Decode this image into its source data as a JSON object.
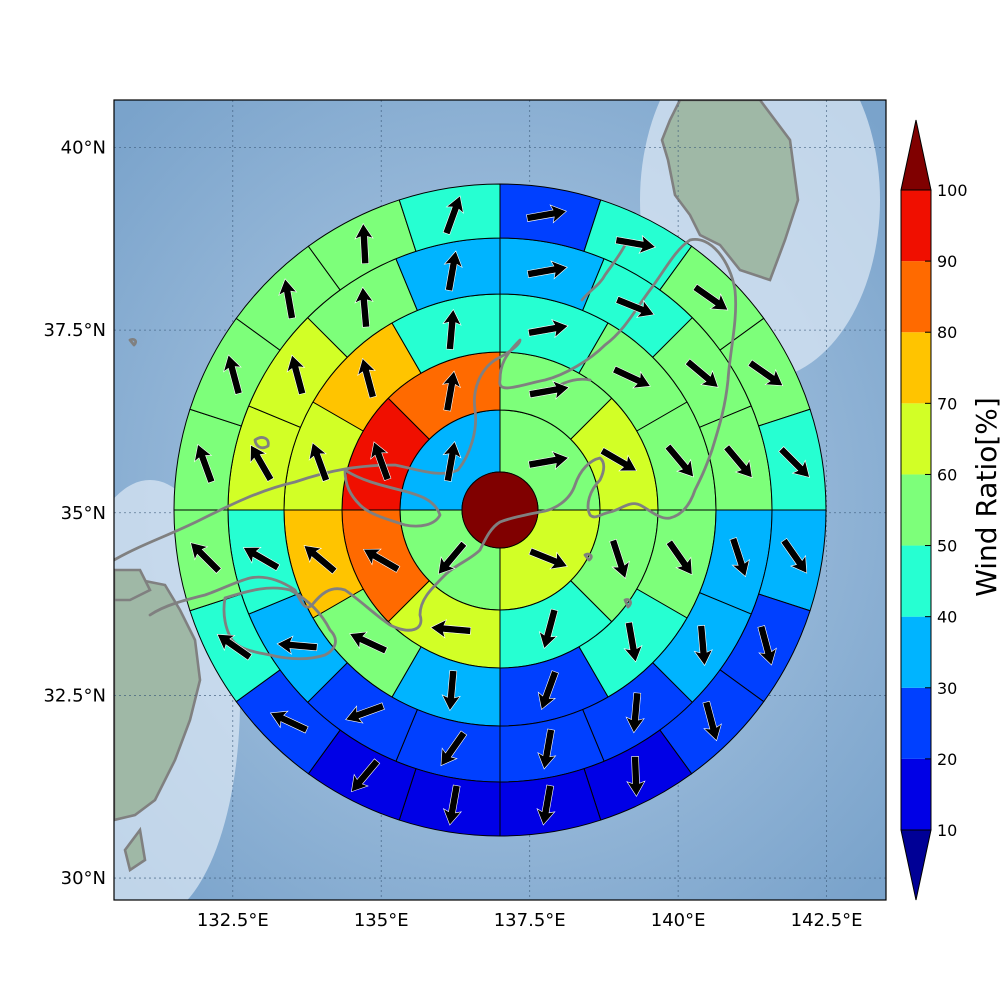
{
  "chart_data": {
    "type": "polar-sector-map",
    "title": "",
    "xlabel": "",
    "ylabel": "",
    "x_ticks": [
      "132.5°E",
      "135°E",
      "137.5°E",
      "140°E",
      "142.5°E"
    ],
    "x_tick_values": [
      132.5,
      135,
      137.5,
      140,
      142.5
    ],
    "y_ticks": [
      "30°N",
      "32.5°N",
      "35°N",
      "37.5°N",
      "40°N"
    ],
    "y_tick_values": [
      30,
      32.5,
      35,
      37.5,
      40
    ],
    "xlim": [
      130.5,
      143.5
    ],
    "ylim": [
      29.7,
      40.65
    ],
    "grid": true,
    "center_value": 100,
    "rings": [
      {
        "sectors": 4,
        "values": [
          55,
          62,
          55,
          35
        ],
        "arrow_dir": [
          80,
          112,
          220,
          10
        ]
      },
      {
        "sectors": 8,
        "values": [
          58,
          62,
          55,
          42,
          68,
          85,
          98,
          85
        ],
        "arrow_dir": [
          80,
          120,
          162,
          195,
          275,
          300,
          340,
          10
        ]
      },
      {
        "sectors": 12,
        "values": [
          42,
          58,
          52,
          55,
          42,
          28,
          38,
          55,
          72,
          62,
          72,
          42
        ],
        "arrow_dir": [
          80,
          115,
          140,
          145,
          170,
          200,
          185,
          295,
          310,
          340,
          345,
          5
        ]
      },
      {
        "sectors": 16,
        "values": [
          35,
          42,
          55,
          52,
          38,
          32,
          25,
          22,
          22,
          28,
          35,
          48,
          62,
          62,
          55,
          32
        ],
        "arrow_dir": [
          80,
          112,
          130,
          140,
          162,
          175,
          185,
          190,
          215,
          250,
          275,
          300,
          330,
          345,
          355,
          10
        ]
      },
      {
        "sectors": 20,
        "values": [
          22,
          45,
          55,
          55,
          42,
          30,
          22,
          25,
          12,
          12,
          15,
          18,
          28,
          42,
          55,
          55,
          52,
          55,
          55,
          45
        ],
        "arrow_dir": [
          80,
          100,
          125,
          125,
          135,
          145,
          165,
          165,
          178,
          190,
          190,
          220,
          295,
          305,
          315,
          340,
          345,
          350,
          357,
          20
        ]
      }
    ],
    "colorbar": {
      "label": "Wind Ratio[%]",
      "ticks": [
        "10",
        "20",
        "30",
        "40",
        "50",
        "60",
        "70",
        "80",
        "90",
        "100"
      ],
      "levels": [
        10,
        20,
        30,
        40,
        50,
        60,
        70,
        80,
        90,
        100
      ],
      "colors": [
        "#0000e6",
        "#0040ff",
        "#00b4ff",
        "#26ffd2",
        "#7dff7a",
        "#d2ff26",
        "#ffc400",
        "#ff6a00",
        "#f00f00",
        "#800000"
      ],
      "under_color": "#000096",
      "over_color": "#800000"
    }
  },
  "colors": {
    "sea_light": "#c9dcee",
    "sea_dark": "#6f9cc8",
    "land": "#9fb8a6"
  }
}
